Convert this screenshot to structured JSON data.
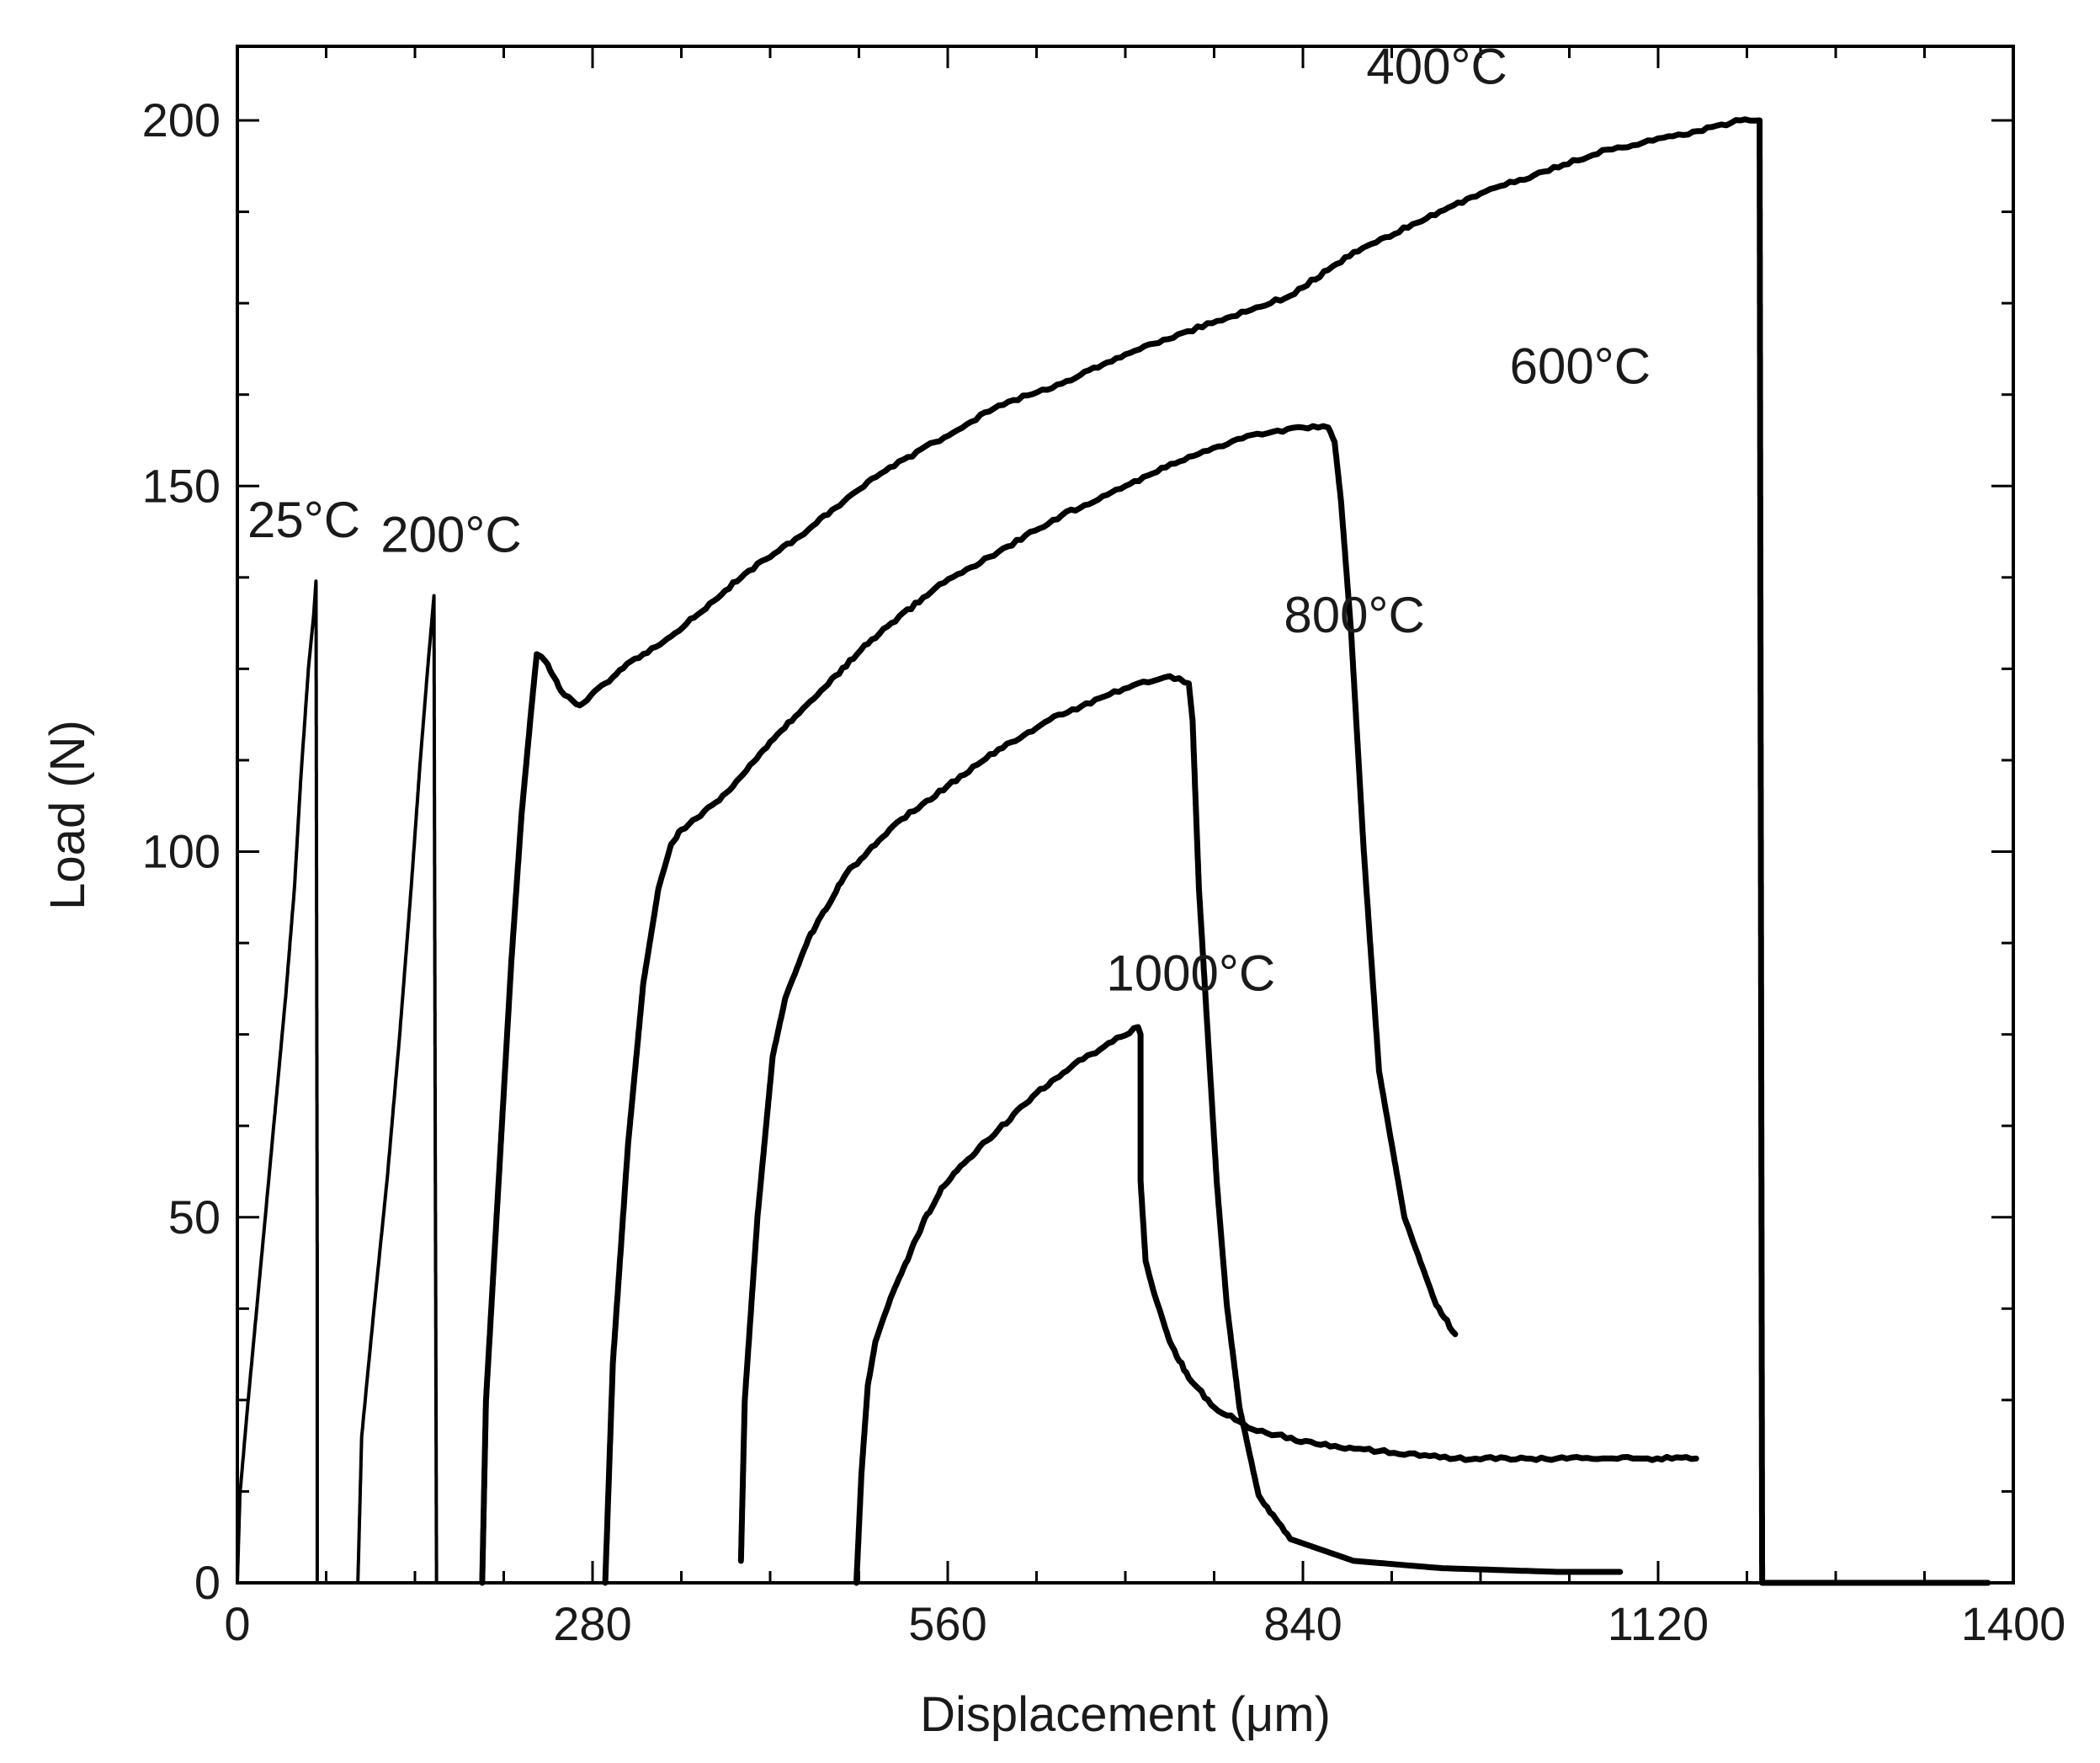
{
  "chart_data": {
    "type": "line",
    "title": "",
    "xlabel": "Displacement  (μm)",
    "ylabel": "Load (N)",
    "xlim": [
      0,
      1400
    ],
    "ylim": [
      0,
      210
    ],
    "xticks": [
      0,
      280,
      560,
      840,
      1120,
      1400
    ],
    "yticks": [
      0,
      50,
      100,
      150,
      200
    ],
    "grid": false,
    "line_color": "#000000",
    "series": [
      {
        "name": "25°C",
        "points": [
          [
            0,
            0
          ],
          [
            2,
            12
          ],
          [
            8,
            24
          ],
          [
            15,
            37
          ],
          [
            22,
            50
          ],
          [
            30,
            65
          ],
          [
            38,
            80
          ],
          [
            45,
            95
          ],
          [
            50,
            110
          ],
          [
            56,
            125
          ],
          [
            60,
            132
          ],
          [
            62,
            137
          ],
          [
            63,
            40
          ],
          [
            63,
            0
          ]
        ]
      },
      {
        "name": "200°C",
        "points": [
          [
            95,
            0
          ],
          [
            98,
            20
          ],
          [
            108,
            38
          ],
          [
            118,
            55
          ],
          [
            128,
            75
          ],
          [
            137,
            95
          ],
          [
            144,
            112
          ],
          [
            150,
            125
          ],
          [
            154,
            133
          ],
          [
            155,
            135
          ],
          [
            156,
            60
          ],
          [
            157,
            0
          ]
        ]
      },
      {
        "name": "400°C",
        "points": [
          [
            193,
            0
          ],
          [
            196,
            25
          ],
          [
            206,
            55
          ],
          [
            216,
            85
          ],
          [
            224,
            105
          ],
          [
            232,
            120
          ],
          [
            236,
            127
          ],
          [
            243,
            126
          ],
          [
            255,
            122
          ],
          [
            270,
            120
          ],
          [
            290,
            123
          ],
          [
            310,
            126
          ],
          [
            330,
            128
          ],
          [
            360,
            132
          ],
          [
            400,
            138
          ],
          [
            450,
            144
          ],
          [
            500,
            151
          ],
          [
            550,
            156
          ],
          [
            600,
            161
          ],
          [
            650,
            164
          ],
          [
            700,
            168
          ],
          [
            730,
            170
          ],
          [
            780,
            173
          ],
          [
            830,
            176
          ],
          [
            880,
            182
          ],
          [
            930,
            186
          ],
          [
            980,
            190
          ],
          [
            1030,
            193
          ],
          [
            1080,
            196
          ],
          [
            1140,
            198
          ],
          [
            1185,
            200
          ],
          [
            1200,
            200
          ],
          [
            1202,
            0
          ],
          [
            1380,
            0
          ]
        ]
      },
      {
        "name": "600°C",
        "points": [
          [
            290,
            0
          ],
          [
            296,
            30
          ],
          [
            308,
            60
          ],
          [
            320,
            82
          ],
          [
            332,
            95
          ],
          [
            342,
            101
          ],
          [
            350,
            103
          ],
          [
            380,
            107
          ],
          [
            420,
            115
          ],
          [
            460,
            122
          ],
          [
            500,
            129
          ],
          [
            550,
            136
          ],
          [
            600,
            141
          ],
          [
            650,
            146
          ],
          [
            700,
            150
          ],
          [
            750,
            154
          ],
          [
            800,
            157
          ],
          [
            840,
            158
          ],
          [
            860,
            158
          ],
          [
            865,
            156
          ],
          [
            870,
            148
          ],
          [
            878,
            130
          ],
          [
            888,
            100
          ],
          [
            900,
            70
          ],
          [
            920,
            50
          ],
          [
            945,
            38
          ],
          [
            960,
            34
          ]
        ]
      },
      {
        "name": "800°C",
        "points": [
          [
            397,
            3
          ],
          [
            400,
            25
          ],
          [
            410,
            50
          ],
          [
            422,
            72
          ],
          [
            432,
            80
          ],
          [
            450,
            88
          ],
          [
            480,
            97
          ],
          [
            520,
            104
          ],
          [
            560,
            109
          ],
          [
            600,
            114
          ],
          [
            640,
            118
          ],
          [
            680,
            121
          ],
          [
            710,
            123
          ],
          [
            735,
            124
          ],
          [
            750,
            123
          ],
          [
            753,
            118
          ],
          [
            758,
            95
          ],
          [
            765,
            75
          ],
          [
            772,
            55
          ],
          [
            780,
            38
          ],
          [
            790,
            24
          ],
          [
            805,
            12
          ],
          [
            830,
            6
          ],
          [
            880,
            3
          ],
          [
            950,
            2
          ],
          [
            1040,
            1.5
          ],
          [
            1090,
            1.5
          ]
        ]
      },
      {
        "name": "1000°C",
        "points": [
          [
            488,
            0
          ],
          [
            492,
            15
          ],
          [
            497,
            27
          ],
          [
            503,
            33
          ],
          [
            515,
            39
          ],
          [
            525,
            43
          ],
          [
            540,
            49
          ],
          [
            555,
            54
          ],
          [
            570,
            57
          ],
          [
            600,
            62
          ],
          [
            630,
            67
          ],
          [
            660,
            71
          ],
          [
            690,
            74
          ],
          [
            710,
            76
          ],
          [
            712,
            75
          ],
          [
            712,
            55
          ],
          [
            716,
            44
          ],
          [
            722,
            40
          ],
          [
            735,
            33
          ],
          [
            750,
            28
          ],
          [
            770,
            24
          ],
          [
            800,
            21
          ],
          [
            850,
            19
          ],
          [
            900,
            18
          ],
          [
            960,
            17
          ],
          [
            1040,
            17
          ],
          [
            1100,
            17
          ],
          [
            1150,
            17
          ]
        ]
      }
    ],
    "series_labels": [
      {
        "text": "25°C",
        "x": 8,
        "y": 143
      },
      {
        "text": "200°C",
        "x": 113,
        "y": 141
      },
      {
        "text": "400°C",
        "x": 890,
        "y": 205
      },
      {
        "text": "600°C",
        "x": 1003,
        "y": 164
      },
      {
        "text": "800°C",
        "x": 825,
        "y": 130
      },
      {
        "text": "1000°C",
        "x": 685,
        "y": 81
      }
    ]
  }
}
